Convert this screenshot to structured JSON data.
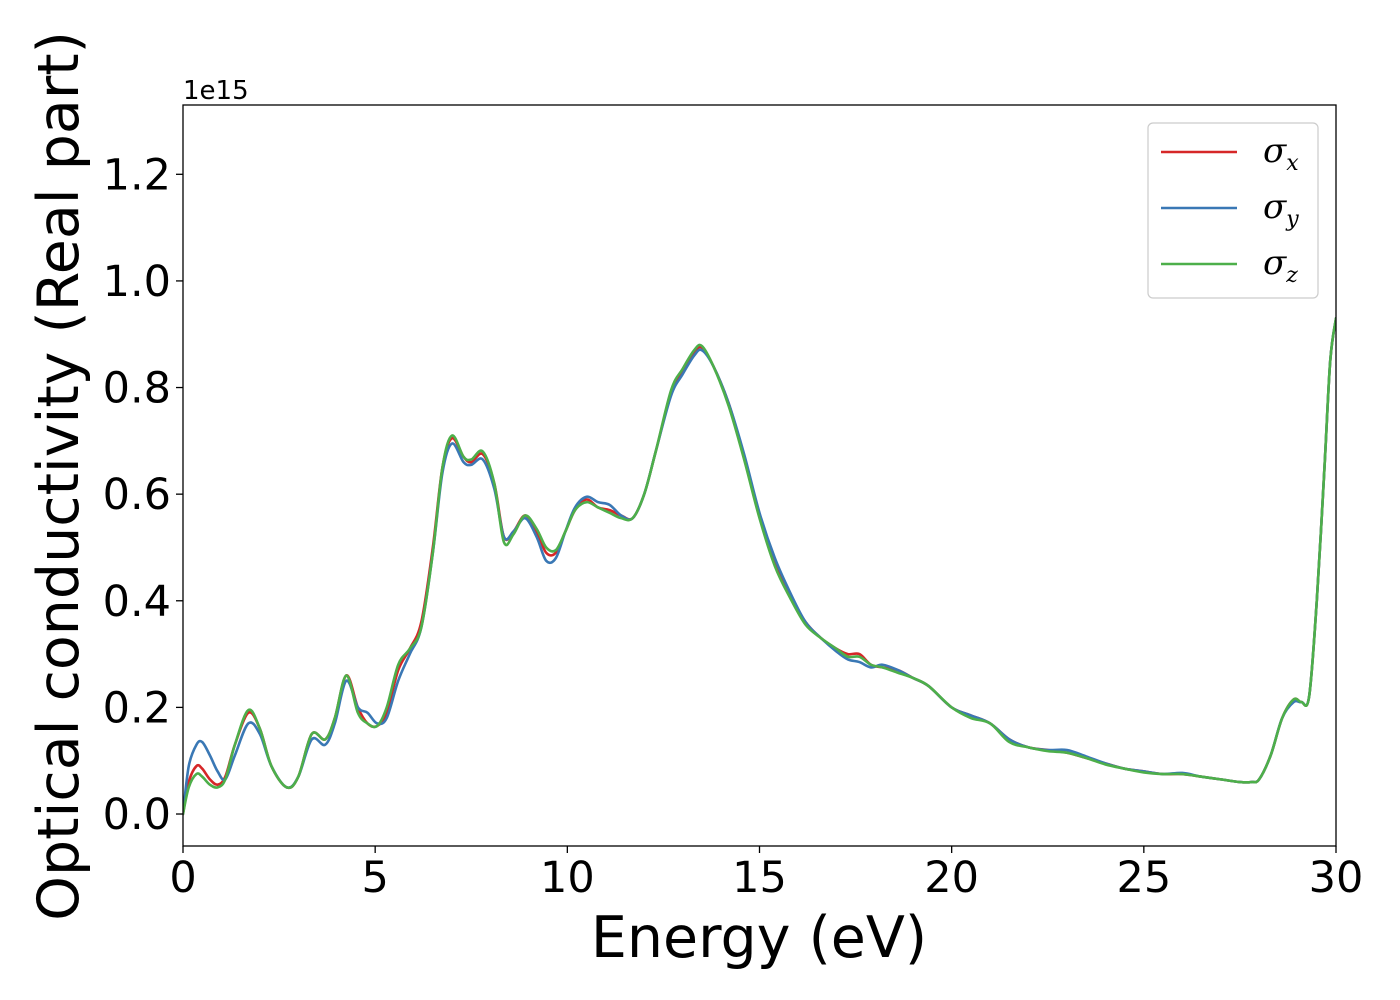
{
  "chart_data": {
    "type": "line",
    "xlabel": "Energy (eV)",
    "ylabel": "Optical conductivity (Real part)",
    "y_offset_text": "1e15",
    "y_scale": 1000000000000000.0,
    "xlim": [
      0,
      30
    ],
    "ylim": [
      -0.06,
      1.33
    ],
    "xticks": [
      0,
      5,
      10,
      15,
      20,
      25,
      30
    ],
    "xtick_labels": [
      "0",
      "5",
      "10",
      "15",
      "20",
      "25",
      "30"
    ],
    "yticks": [
      0.0,
      0.2,
      0.4,
      0.6,
      0.8,
      1.0,
      1.2
    ],
    "ytick_labels": [
      "0.0",
      "0.2",
      "0.4",
      "0.6",
      "0.8",
      "1.0",
      "1.2"
    ],
    "grid": false,
    "legend_position": "top-right",
    "series": [
      {
        "name": "σx",
        "legend_base": "σ",
        "legend_sub": "x",
        "color": "#d62728",
        "x": [
          0,
          0.15,
          0.35,
          0.5,
          0.7,
          0.9,
          1.1,
          1.35,
          1.7,
          2.0,
          2.3,
          2.7,
          3.0,
          3.35,
          3.7,
          3.95,
          4.25,
          4.55,
          4.8,
          5.05,
          5.3,
          5.6,
          5.9,
          6.2,
          6.5,
          6.75,
          7.0,
          7.3,
          7.5,
          7.8,
          8.1,
          8.35,
          8.6,
          8.9,
          9.2,
          9.45,
          9.7,
          9.95,
          10.2,
          10.5,
          10.8,
          11.1,
          11.4,
          11.7,
          12.0,
          12.3,
          12.7,
          13.0,
          13.3,
          13.5,
          13.8,
          14.2,
          14.6,
          15.0,
          15.4,
          15.8,
          16.2,
          16.6,
          17.0,
          17.3,
          17.6,
          17.9,
          18.2,
          18.6,
          19.0,
          19.4,
          20.0,
          20.5,
          21.0,
          21.5,
          22.0,
          22.5,
          23.0,
          23.5,
          24.0,
          24.5,
          25.0,
          25.5,
          26.0,
          26.5,
          27.0,
          27.5,
          27.8,
          28.0,
          28.3,
          28.6,
          28.9,
          29.1,
          29.3,
          29.5,
          29.7,
          29.85,
          30
        ],
        "y": [
          0.0,
          0.06,
          0.09,
          0.085,
          0.065,
          0.055,
          0.07,
          0.13,
          0.19,
          0.16,
          0.09,
          0.05,
          0.07,
          0.15,
          0.14,
          0.18,
          0.26,
          0.2,
          0.17,
          0.165,
          0.19,
          0.27,
          0.31,
          0.36,
          0.5,
          0.65,
          0.705,
          0.67,
          0.66,
          0.675,
          0.62,
          0.52,
          0.53,
          0.56,
          0.53,
          0.49,
          0.49,
          0.53,
          0.57,
          0.59,
          0.575,
          0.57,
          0.56,
          0.555,
          0.6,
          0.68,
          0.79,
          0.83,
          0.865,
          0.875,
          0.84,
          0.77,
          0.67,
          0.56,
          0.47,
          0.41,
          0.36,
          0.33,
          0.31,
          0.3,
          0.3,
          0.28,
          0.275,
          0.27,
          0.255,
          0.24,
          0.2,
          0.185,
          0.17,
          0.14,
          0.125,
          0.12,
          0.115,
          0.105,
          0.095,
          0.085,
          0.08,
          0.075,
          0.075,
          0.07,
          0.065,
          0.06,
          0.06,
          0.065,
          0.11,
          0.18,
          0.215,
          0.21,
          0.22,
          0.4,
          0.65,
          0.85,
          0.93
        ]
      },
      {
        "name": "σy",
        "legend_base": "σ",
        "legend_sub": "y",
        "color": "#3a78b5",
        "x": [
          0,
          0.15,
          0.35,
          0.5,
          0.7,
          0.9,
          1.1,
          1.35,
          1.7,
          2.0,
          2.3,
          2.7,
          3.0,
          3.35,
          3.7,
          3.95,
          4.25,
          4.55,
          4.8,
          5.05,
          5.3,
          5.6,
          5.9,
          6.2,
          6.5,
          6.75,
          7.0,
          7.3,
          7.5,
          7.8,
          8.1,
          8.35,
          8.6,
          8.9,
          9.2,
          9.45,
          9.7,
          9.95,
          10.2,
          10.5,
          10.8,
          11.1,
          11.4,
          11.7,
          12.0,
          12.3,
          12.7,
          13.0,
          13.3,
          13.5,
          13.8,
          14.2,
          14.6,
          15.0,
          15.4,
          15.8,
          16.2,
          16.6,
          17.0,
          17.3,
          17.6,
          17.9,
          18.2,
          18.6,
          19.0,
          19.4,
          20.0,
          20.5,
          21.0,
          21.5,
          22.0,
          22.5,
          23.0,
          23.5,
          24.0,
          24.5,
          25.0,
          25.5,
          26.0,
          26.5,
          27.0,
          27.5,
          27.8,
          28.0,
          28.3,
          28.6,
          28.9,
          29.1,
          29.3,
          29.5,
          29.7,
          29.85,
          30
        ],
        "y": [
          0.0,
          0.09,
          0.13,
          0.135,
          0.11,
          0.08,
          0.065,
          0.11,
          0.17,
          0.15,
          0.09,
          0.05,
          0.07,
          0.14,
          0.13,
          0.17,
          0.25,
          0.2,
          0.19,
          0.17,
          0.18,
          0.25,
          0.3,
          0.35,
          0.49,
          0.64,
          0.695,
          0.66,
          0.655,
          0.665,
          0.61,
          0.52,
          0.53,
          0.555,
          0.52,
          0.475,
          0.48,
          0.53,
          0.575,
          0.595,
          0.585,
          0.58,
          0.56,
          0.555,
          0.6,
          0.68,
          0.785,
          0.825,
          0.86,
          0.87,
          0.84,
          0.77,
          0.675,
          0.565,
          0.48,
          0.415,
          0.36,
          0.33,
          0.305,
          0.29,
          0.285,
          0.275,
          0.28,
          0.27,
          0.255,
          0.24,
          0.2,
          0.185,
          0.17,
          0.14,
          0.125,
          0.12,
          0.12,
          0.108,
          0.095,
          0.085,
          0.08,
          0.075,
          0.077,
          0.07,
          0.065,
          0.06,
          0.06,
          0.065,
          0.11,
          0.18,
          0.21,
          0.21,
          0.22,
          0.4,
          0.65,
          0.85,
          0.93
        ]
      },
      {
        "name": "σz",
        "legend_base": "σ",
        "legend_sub": "z",
        "color": "#4daf4a",
        "x": [
          0,
          0.15,
          0.35,
          0.5,
          0.7,
          0.9,
          1.1,
          1.35,
          1.7,
          2.0,
          2.3,
          2.7,
          3.0,
          3.35,
          3.7,
          3.95,
          4.25,
          4.55,
          4.8,
          5.05,
          5.3,
          5.6,
          5.9,
          6.2,
          6.5,
          6.75,
          7.0,
          7.3,
          7.5,
          7.8,
          8.1,
          8.35,
          8.6,
          8.9,
          9.2,
          9.45,
          9.7,
          9.95,
          10.2,
          10.5,
          10.8,
          11.1,
          11.4,
          11.7,
          12.0,
          12.3,
          12.7,
          13.0,
          13.3,
          13.5,
          13.8,
          14.2,
          14.6,
          15.0,
          15.4,
          15.8,
          16.2,
          16.6,
          17.0,
          17.3,
          17.6,
          17.9,
          18.2,
          18.6,
          19.0,
          19.4,
          20.0,
          20.5,
          21.0,
          21.5,
          22.0,
          22.5,
          23.0,
          23.5,
          24.0,
          24.5,
          25.0,
          25.5,
          26.0,
          26.5,
          27.0,
          27.5,
          27.8,
          28.0,
          28.3,
          28.6,
          28.9,
          29.1,
          29.3,
          29.5,
          29.7,
          29.85,
          30
        ],
        "y": [
          0.0,
          0.05,
          0.075,
          0.07,
          0.055,
          0.05,
          0.065,
          0.13,
          0.195,
          0.16,
          0.09,
          0.05,
          0.07,
          0.15,
          0.14,
          0.18,
          0.26,
          0.19,
          0.17,
          0.165,
          0.2,
          0.28,
          0.31,
          0.35,
          0.49,
          0.65,
          0.71,
          0.67,
          0.665,
          0.68,
          0.62,
          0.51,
          0.525,
          0.56,
          0.535,
          0.5,
          0.495,
          0.53,
          0.57,
          0.585,
          0.575,
          0.565,
          0.555,
          0.555,
          0.6,
          0.68,
          0.795,
          0.835,
          0.87,
          0.878,
          0.84,
          0.765,
          0.665,
          0.555,
          0.465,
          0.405,
          0.355,
          0.33,
          0.31,
          0.295,
          0.295,
          0.28,
          0.275,
          0.265,
          0.255,
          0.24,
          0.2,
          0.18,
          0.17,
          0.135,
          0.125,
          0.118,
          0.115,
          0.105,
          0.093,
          0.085,
          0.078,
          0.075,
          0.075,
          0.07,
          0.065,
          0.06,
          0.06,
          0.065,
          0.11,
          0.18,
          0.215,
          0.21,
          0.22,
          0.4,
          0.65,
          0.85,
          0.93
        ]
      }
    ]
  }
}
